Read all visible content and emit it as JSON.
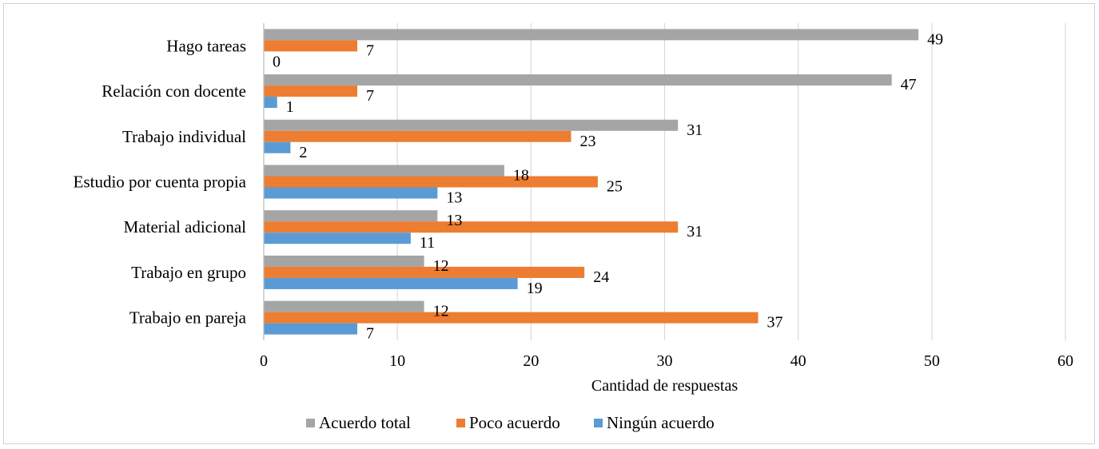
{
  "chart_data": {
    "type": "bar",
    "orientation": "horizontal",
    "categories": [
      "Hago tareas",
      "Relación con docente",
      "Trabajo individual",
      "Estudio por cuenta propia",
      "Material adicional",
      "Trabajo en grupo",
      "Trabajo en pareja"
    ],
    "series": [
      {
        "name": "Acuerdo total",
        "color": "#a5a5a5",
        "values": [
          49,
          47,
          31,
          18,
          13,
          12,
          12
        ]
      },
      {
        "name": "Poco acuerdo",
        "color": "#ed7d31",
        "values": [
          7,
          7,
          23,
          25,
          31,
          24,
          37
        ]
      },
      {
        "name": "Ningún acuerdo",
        "color": "#5b9bd5",
        "values": [
          0,
          1,
          2,
          13,
          11,
          19,
          7
        ]
      }
    ],
    "title": "",
    "xlabel": "Cantidad de respuestas",
    "ylabel": "",
    "xlim": [
      0,
      60
    ],
    "xticks": [
      0,
      10,
      20,
      30,
      40,
      50,
      60
    ],
    "grid": "vertical",
    "legend_position": "bottom",
    "data_labels": true
  }
}
